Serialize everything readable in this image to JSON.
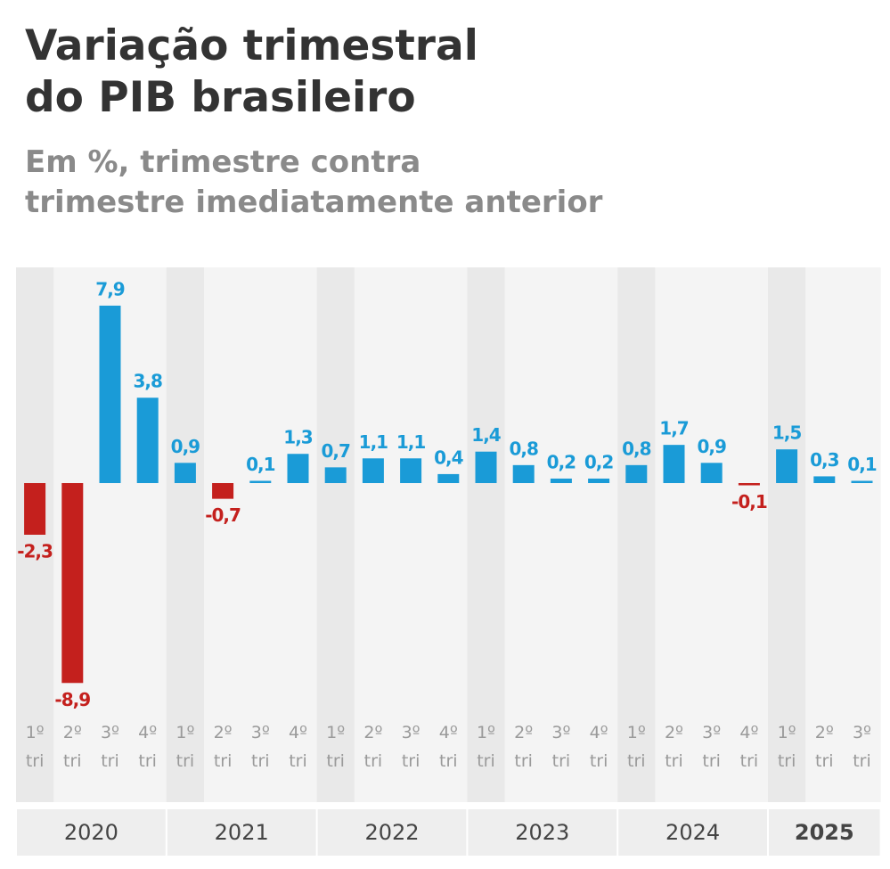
{
  "chart_data": {
    "type": "bar",
    "title": "Variação trimestral do PIB brasileiro",
    "subtitle": "Em %, trimestre contra trimestre imediatamente anterior",
    "categories": [
      "1º tri",
      "2º tri",
      "3º tri",
      "4º tri",
      "1º tri",
      "2º tri",
      "3º tri",
      "4º tri",
      "1º tri",
      "2º tri",
      "3º tri",
      "4º tri",
      "1º tri",
      "2º tri",
      "3º tri",
      "4º tri",
      "1º tri",
      "2º tri",
      "3º tri",
      "4º tri",
      "1º tri",
      "2º tri",
      "3º tri"
    ],
    "values": [
      -2.3,
      -8.9,
      7.9,
      3.8,
      0.9,
      -0.7,
      0.1,
      1.3,
      0.7,
      1.1,
      1.1,
      0.4,
      1.4,
      0.8,
      0.2,
      0.2,
      0.8,
      1.7,
      0.9,
      -0.1,
      1.5,
      0.3,
      0.1
    ],
    "value_labels": [
      "-2,3",
      "-8,9",
      "7,9",
      "3,8",
      "0,9",
      "-0,7",
      "0,1",
      "1,3",
      "0,7",
      "1,1",
      "1,1",
      "0,4",
      "1,4",
      "0,8",
      "0,2",
      "0,2",
      "0,8",
      "1,7",
      "0,9",
      "-0,1",
      "1,5",
      "0,3",
      "0,1"
    ],
    "groups": [
      {
        "label": "2020",
        "span": 4
      },
      {
        "label": "2021",
        "span": 4
      },
      {
        "label": "2022",
        "span": 4
      },
      {
        "label": "2023",
        "span": 4
      },
      {
        "label": "2024",
        "span": 4
      },
      {
        "label": "2025",
        "span": 3
      }
    ],
    "color": "#1a9bd7",
    "negative_color": "#c4201d"
  }
}
